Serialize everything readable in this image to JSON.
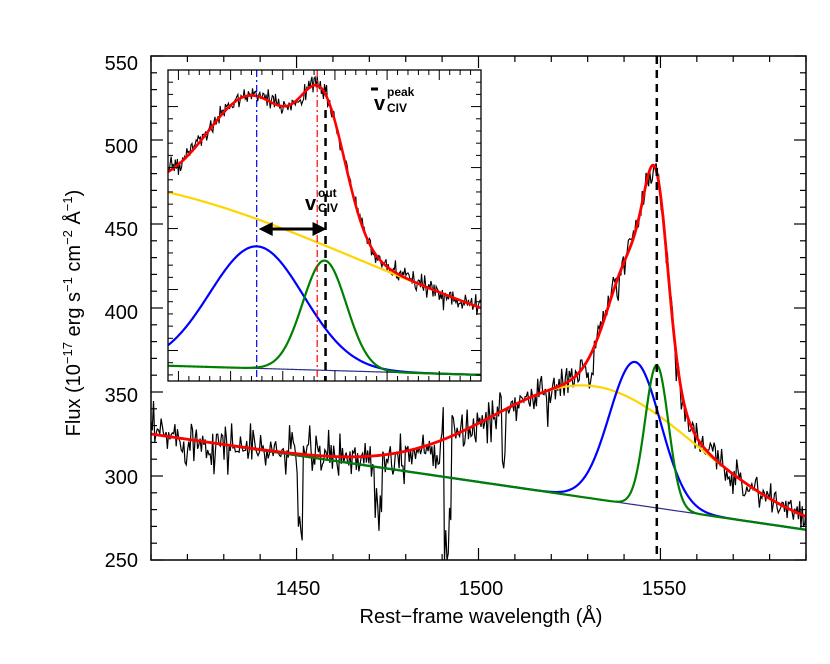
{
  "chart_data": {
    "type": "line",
    "xlabel": "Rest−frame wavelength (Å)",
    "ylabel_main": "Flux (10",
    "ylabel_exp1": "−17",
    "ylabel_mid1": " erg s",
    "ylabel_exp2": "−1",
    "ylabel_mid2": " cm",
    "ylabel_exp3": "−2",
    "ylabel_mid3": " Å",
    "ylabel_exp4": "−1",
    "ylabel_end": ")",
    "xlim": [
      1410,
      1590
    ],
    "ylim": [
      250,
      550
    ],
    "xticks": [
      1450,
      1500,
      1550
    ],
    "xtick_labels": [
      "1450",
      "1500",
      "1550"
    ],
    "yticks": [
      250,
      300,
      350,
      400,
      450,
      500,
      550
    ],
    "ytick_labels": [
      "250",
      "300",
      "350",
      "400",
      "450",
      "500",
      "550"
    ],
    "peak_wavelength": 1549,
    "series": [
      {
        "name": "observed spectrum",
        "color": "#000000"
      },
      {
        "name": "total model",
        "color": "#ff0000"
      },
      {
        "name": "continuum",
        "color": "#2b2b8a"
      },
      {
        "name": "broad component",
        "color": "#ffd400"
      },
      {
        "name": "outflow component",
        "color": "#0000ff"
      },
      {
        "name": "core component",
        "color": "#008000"
      }
    ],
    "components": {
      "continuum": {
        "y_at_1410": 325,
        "y_at_1590": 268
      },
      "broad": {
        "center": 1532,
        "amp": 67,
        "sigma": 28
      },
      "outflow": {
        "center": 1543,
        "amp": 85,
        "sigma": 7
      },
      "core": {
        "center": 1549,
        "amp": 85,
        "sigma": 3.2
      }
    },
    "inset": {
      "vpeak_label": "v",
      "vpeak_sup": "peak",
      "vpeak_sub": "CIV",
      "vout_label": "v",
      "vout_sup": "out",
      "vout_sub": "CIV",
      "blue_line_color": "#0000ff",
      "red_line_color": "#ff0000"
    }
  }
}
